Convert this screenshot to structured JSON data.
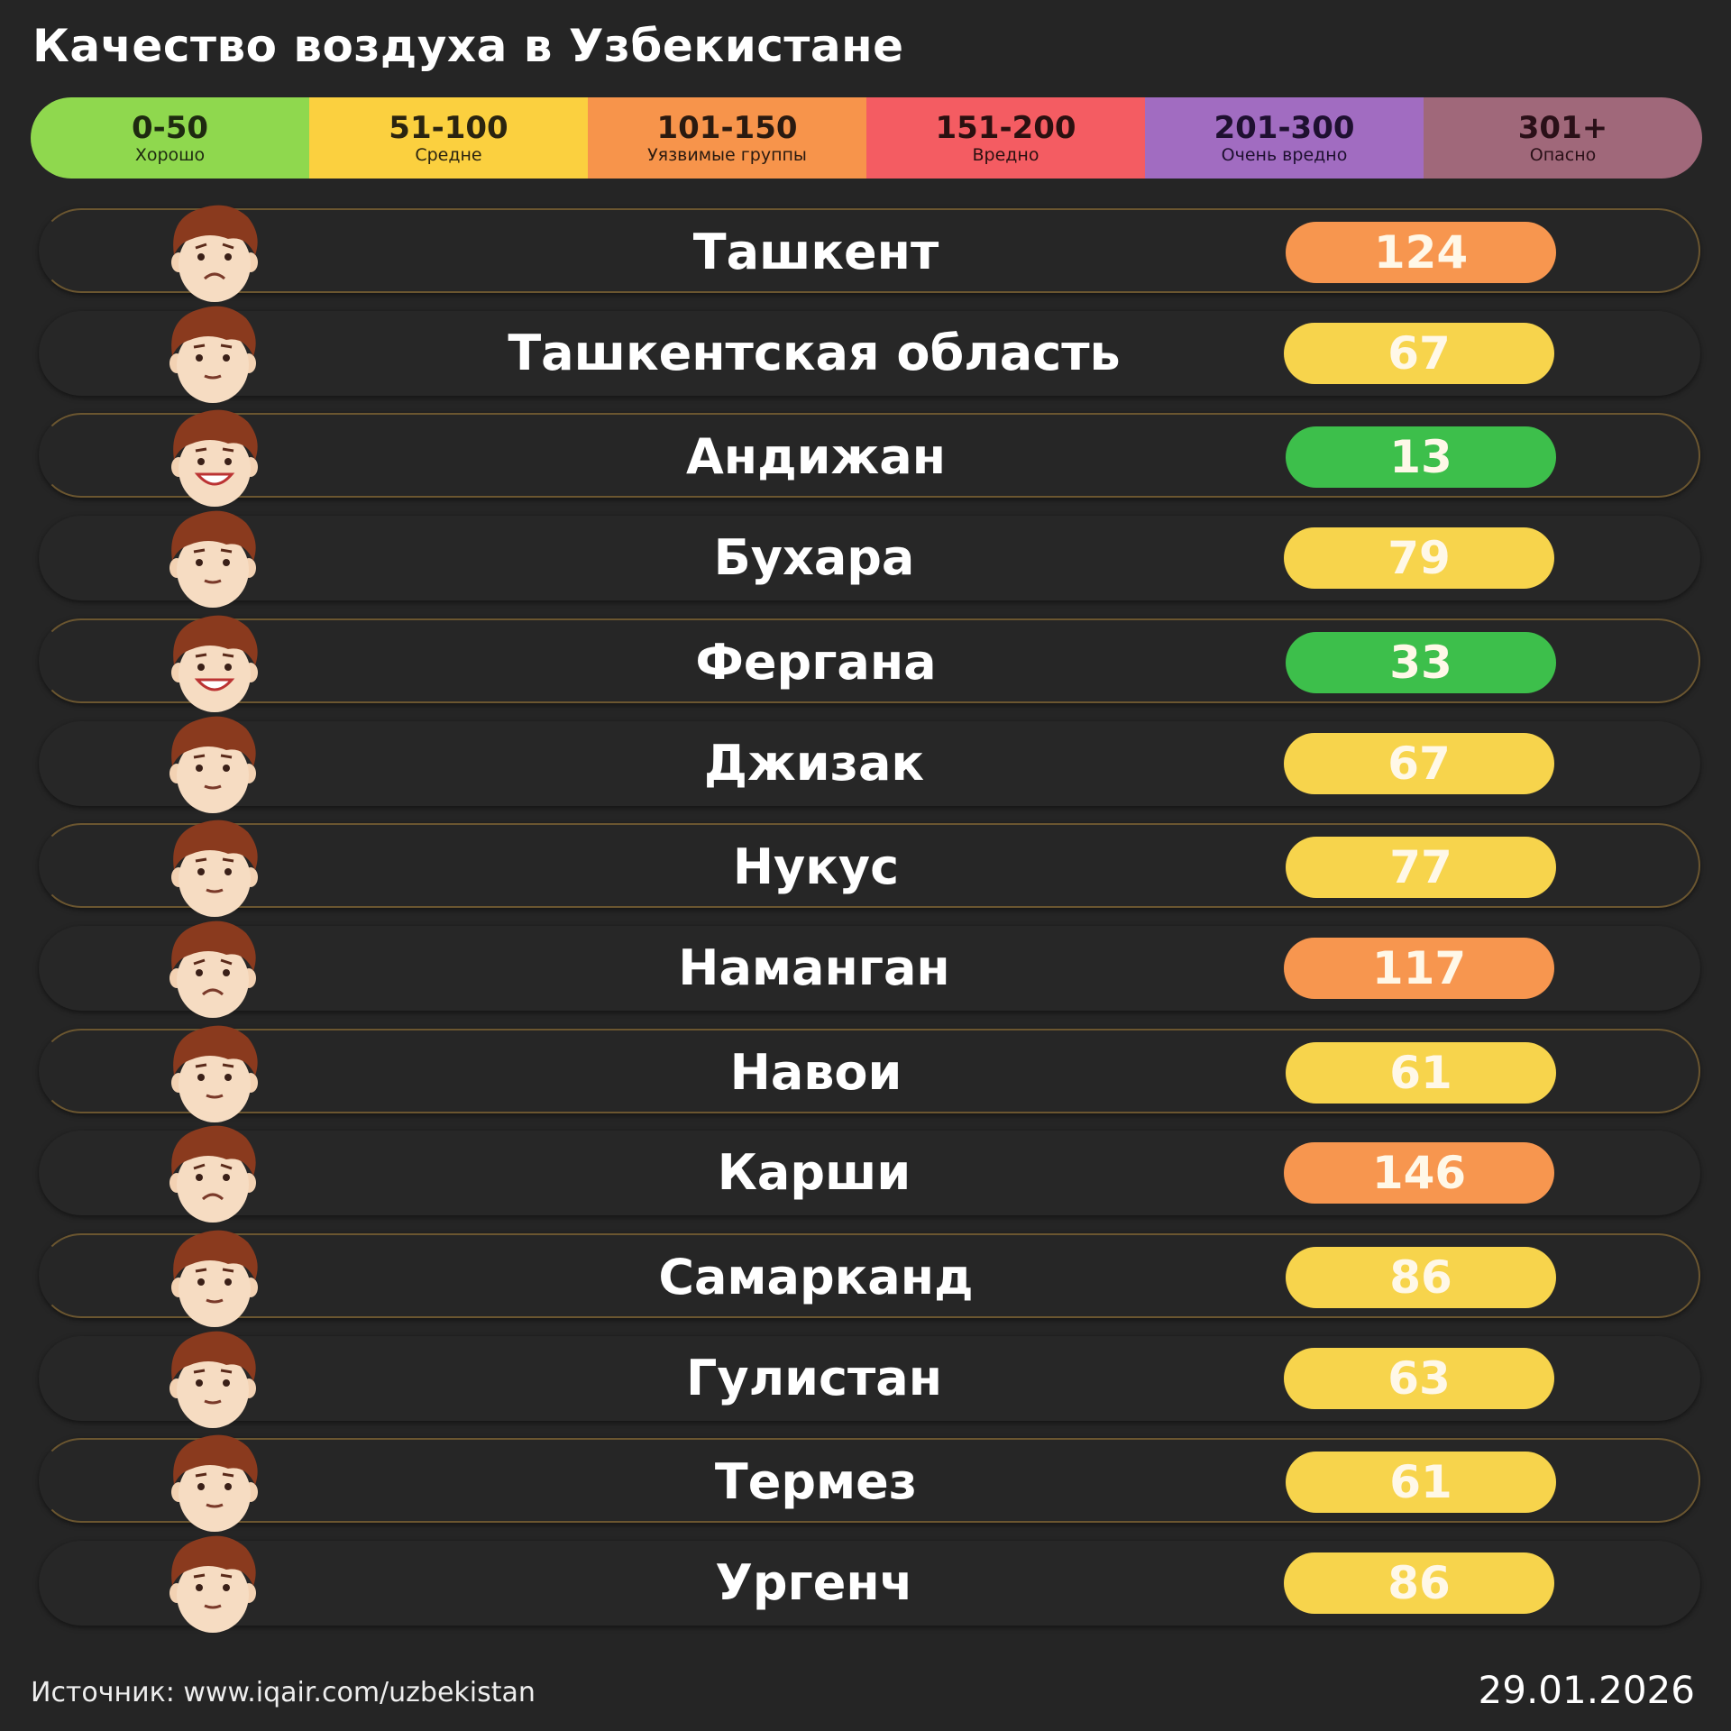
{
  "title": "Качество воздуха в Узбекистане",
  "legend": [
    {
      "range": "0-50",
      "label": "Хорошо",
      "color": "#8fd84e",
      "text_color": "#1e2a10"
    },
    {
      "range": "51-100",
      "label": "Средне",
      "color": "#fbd03f",
      "text_color": "#2a2410"
    },
    {
      "range": "101-150",
      "label": "Уязвимые группы",
      "color": "#f7944b",
      "text_color": "#2a1a10"
    },
    {
      "range": "151-200",
      "label": "Вредно",
      "color": "#f45c62",
      "text_color": "#2a1010"
    },
    {
      "range": "201-300",
      "label": "Очень вредно",
      "color": "#a16cc1",
      "text_color": "#1e1030"
    },
    {
      "range": "301+",
      "label": "Опасно",
      "color": "#a0687a",
      "text_color": "#2a1018"
    }
  ],
  "pill_colors": {
    "good": "#3dbf4b",
    "moderate": "#f7d44c",
    "sensitive": "#f7964f"
  },
  "rows": [
    {
      "city": "Ташкент",
      "aqi": "124",
      "level": "sensitive",
      "face": "sad"
    },
    {
      "city": "Ташкентская область",
      "aqi": "67",
      "level": "moderate",
      "face": "neutral"
    },
    {
      "city": "Андижан",
      "aqi": "13",
      "level": "good",
      "face": "happy"
    },
    {
      "city": "Бухара",
      "aqi": "79",
      "level": "moderate",
      "face": "neutral"
    },
    {
      "city": "Фергана",
      "aqi": "33",
      "level": "good",
      "face": "happy"
    },
    {
      "city": "Джизак",
      "aqi": "67",
      "level": "moderate",
      "face": "neutral"
    },
    {
      "city": "Нукус",
      "aqi": "77",
      "level": "moderate",
      "face": "neutral"
    },
    {
      "city": "Наманган",
      "aqi": "117",
      "level": "sensitive",
      "face": "sad"
    },
    {
      "city": "Навои",
      "aqi": "61",
      "level": "moderate",
      "face": "neutral"
    },
    {
      "city": "Карши",
      "aqi": "146",
      "level": "sensitive",
      "face": "sad"
    },
    {
      "city": "Самарканд",
      "aqi": "86",
      "level": "moderate",
      "face": "neutral"
    },
    {
      "city": "Гулистан",
      "aqi": "63",
      "level": "moderate",
      "face": "neutral"
    },
    {
      "city": "Термез",
      "aqi": "61",
      "level": "moderate",
      "face": "neutral"
    },
    {
      "city": "Ургенч",
      "aqi": "86",
      "level": "moderate",
      "face": "neutral"
    }
  ],
  "footer": {
    "source": "Источник: www.iqair.com/uzbekistan",
    "date": "29.01.2026"
  }
}
